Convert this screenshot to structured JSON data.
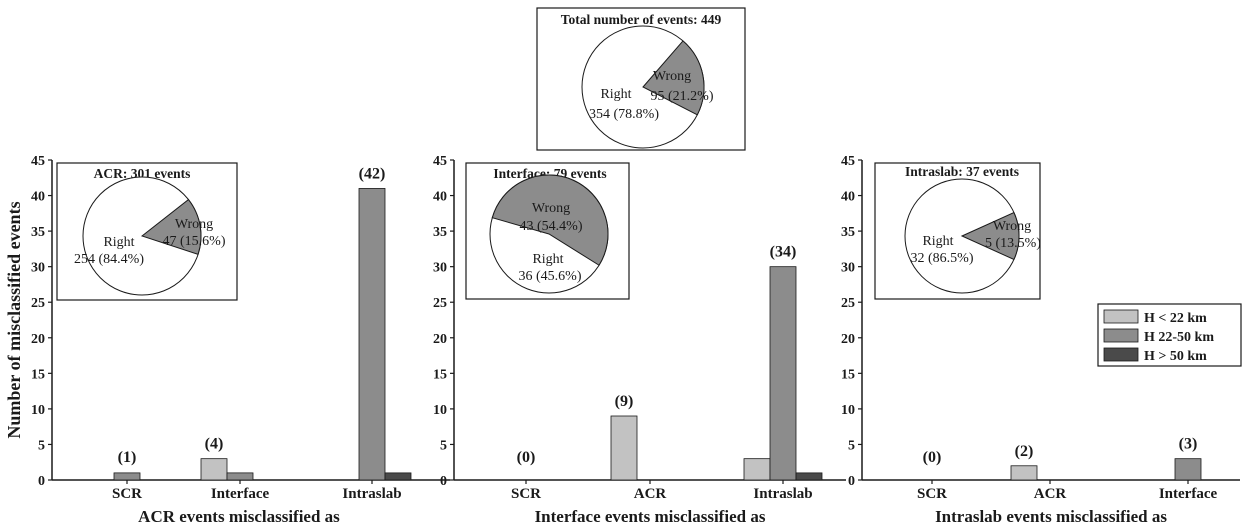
{
  "colors": {
    "h_lt_22": "#c2c2c2",
    "h_22_50": "#8c8c8c",
    "h_gt_50": "#4a4a4a",
    "wrong_slice": "#8c8c8c",
    "right_slice": "#ffffff"
  },
  "top_pie": {
    "title": "Total number of events: 449",
    "slices": [
      {
        "label": "Wrong",
        "detail": "95 (21.2%)",
        "value": 95
      },
      {
        "label": "Right",
        "detail": "354 (78.8%)",
        "value": 354
      }
    ]
  },
  "ylabel": "Number of misclassified events",
  "legend": [
    "H < 22 km",
    "H 22-50 km",
    "H > 50 km"
  ],
  "chart_data": [
    {
      "type": "bar",
      "xlabel": "ACR events misclassified as",
      "ylabel": "Number of misclassified events",
      "ylim": [
        0,
        45
      ],
      "yticks": [
        "0",
        "5",
        "10",
        "15",
        "20",
        "25",
        "30",
        "35",
        "40",
        "45"
      ],
      "categories": [
        "SCR",
        "Interface",
        "Intraslab"
      ],
      "series": [
        {
          "name": "H < 22 km",
          "values": [
            0,
            3,
            0
          ]
        },
        {
          "name": "H 22-50 km",
          "values": [
            1,
            1,
            41
          ]
        },
        {
          "name": "H > 50 km",
          "values": [
            0,
            0,
            1
          ]
        }
      ],
      "annotations": [
        "(1)",
        "(4)",
        "(42)"
      ],
      "totals": [
        1,
        4,
        42
      ],
      "inset": {
        "title": "ACR: 301 events",
        "slices": [
          {
            "label": "Wrong",
            "detail": "47 (15.6%)",
            "value": 47
          },
          {
            "label": "Right",
            "detail": "254 (84.4%)",
            "value": 254
          }
        ]
      }
    },
    {
      "type": "bar",
      "xlabel": "Interface events misclassified as",
      "ylabel": "",
      "ylim": [
        0,
        45
      ],
      "yticks": [
        "0",
        "5",
        "10",
        "15",
        "20",
        "25",
        "30",
        "35",
        "40",
        "45"
      ],
      "categories": [
        "SCR",
        "ACR",
        "Intraslab"
      ],
      "series": [
        {
          "name": "H < 22 km",
          "values": [
            0,
            9,
            3
          ]
        },
        {
          "name": "H 22-50 km",
          "values": [
            0,
            0,
            30
          ]
        },
        {
          "name": "H > 50 km",
          "values": [
            0,
            0,
            1
          ]
        }
      ],
      "annotations": [
        "(0)",
        "(9)",
        "(34)"
      ],
      "totals": [
        0,
        9,
        34
      ],
      "inset": {
        "title": "Interface: 79 events",
        "slices": [
          {
            "label": "Wrong",
            "detail": "43 (54.4%)",
            "value": 43
          },
          {
            "label": "Right",
            "detail": "36 (45.6%)",
            "value": 36
          }
        ]
      }
    },
    {
      "type": "bar",
      "xlabel": "Intraslab events misclassified as",
      "ylabel": "",
      "ylim": [
        0,
        45
      ],
      "yticks": [
        "0",
        "5",
        "10",
        "15",
        "20",
        "25",
        "30",
        "35",
        "40",
        "45"
      ],
      "categories": [
        "SCR",
        "ACR",
        "Interface"
      ],
      "series": [
        {
          "name": "H < 22 km",
          "values": [
            0,
            2,
            0
          ]
        },
        {
          "name": "H 22-50 km",
          "values": [
            0,
            0,
            3
          ]
        },
        {
          "name": "H > 50 km",
          "values": [
            0,
            0,
            0
          ]
        }
      ],
      "annotations": [
        "(0)",
        "(2)",
        "(3)"
      ],
      "totals": [
        0,
        2,
        3
      ],
      "inset": {
        "title": "Intraslab: 37 events",
        "slices": [
          {
            "label": "Wrong",
            "detail": "5 (13.5%)",
            "value": 5
          },
          {
            "label": "Right",
            "detail": "32 (86.5%)",
            "value": 32
          }
        ]
      }
    }
  ]
}
